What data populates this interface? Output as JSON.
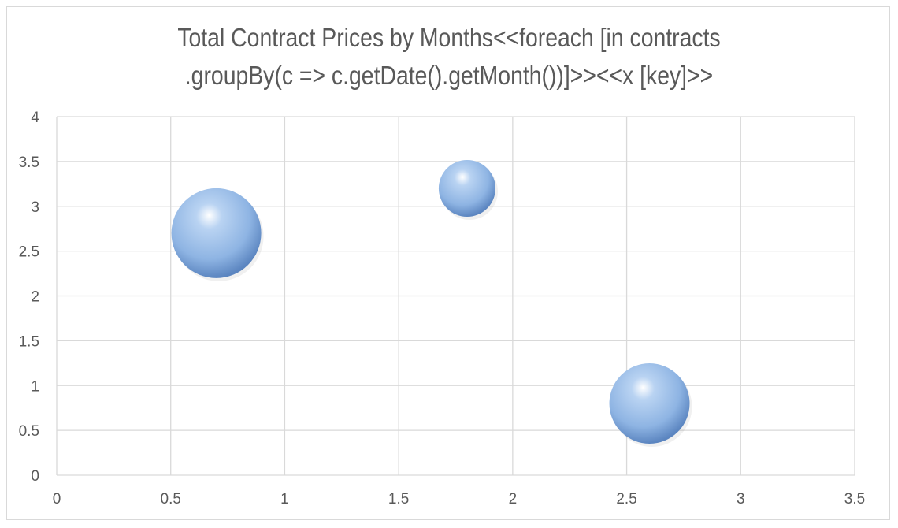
{
  "chart_data": {
    "type": "bubble",
    "title_lines": [
      "Total Contract Prices by Months<<foreach [in contracts",
      ".groupBy(c => c.getDate().getMonth())]>><<x [key]>>"
    ],
    "xlabel": "",
    "ylabel": "",
    "xlim": [
      0,
      3.5
    ],
    "ylim": [
      0,
      4
    ],
    "x_ticks": [
      "0",
      "0.5",
      "1",
      "1.5",
      "2",
      "2.5",
      "3",
      "3.5"
    ],
    "y_ticks": [
      "0",
      "0.5",
      "1",
      "1.5",
      "2",
      "2.5",
      "3",
      "3.5",
      "4"
    ],
    "grid": true,
    "legend": "none",
    "series": [
      {
        "points": [
          {
            "x": 0.7,
            "y": 2.7,
            "size": 10
          },
          {
            "x": 1.8,
            "y": 3.2,
            "size": 4
          },
          {
            "x": 2.6,
            "y": 0.8,
            "size": 8
          }
        ]
      }
    ],
    "colors": {
      "bubble": "#8eb4e3",
      "bubble_dark": "#5b85c0",
      "bubble_light": "#ffffff",
      "grid": "#d9d9d9",
      "text": "#595959"
    }
  }
}
